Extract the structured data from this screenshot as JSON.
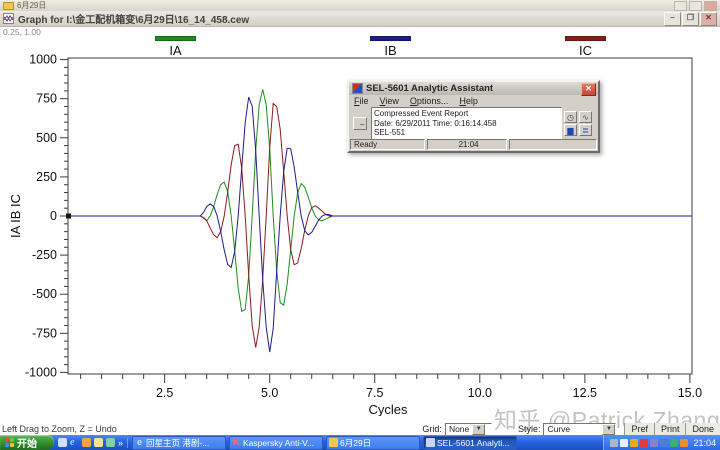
{
  "background_window": {
    "title": "6月29日"
  },
  "graph_window": {
    "title": "Graph for I:\\金工配机箱变\\6月29日\\16_14_458.cew",
    "corner_readout": "0.25, 1.00",
    "legend": [
      {
        "label": "IA",
        "color": "#1E8C1E"
      },
      {
        "label": "IB",
        "color": "#1C1C8C"
      },
      {
        "label": "IC",
        "color": "#8C1C1C"
      }
    ],
    "status_hint": "Left Drag to Zoom, Z = Undo",
    "bottom_toolbar": {
      "grid_label": "Grid:",
      "grid_value": "None",
      "style_label": "Style:",
      "style_value": "Curve",
      "buttons": [
        "Pref",
        "Print",
        "Done"
      ]
    }
  },
  "chart_data": {
    "type": "line",
    "title": "",
    "xlabel": "Cycles",
    "ylabel": "IA IB IC",
    "xlim": [
      0.2,
      15.05
    ],
    "ylim": [
      -1010,
      1010
    ],
    "grid": "off",
    "legend_position": "top",
    "x_ticks_major": [
      2.5,
      5.0,
      7.5,
      10.0,
      12.5,
      15.0
    ],
    "x_tick_labels": [
      "2.5",
      "5.0",
      "7.5",
      "10.0",
      "12.5",
      "15.0"
    ],
    "x_minor_step": 0.5,
    "y_ticks_major": [
      1000,
      750,
      500,
      250,
      0,
      -250,
      -500,
      -750,
      -1000
    ],
    "y_minor_step": 50,
    "series": [
      {
        "name": "IA",
        "color": "#1E8C1E",
        "points": [
          [
            0.2,
            0
          ],
          [
            3.35,
            0
          ],
          [
            3.43,
            -15
          ],
          [
            3.5,
            -30
          ],
          [
            3.583,
            0
          ],
          [
            3.667,
            60
          ],
          [
            3.75,
            139
          ],
          [
            3.833,
            200
          ],
          [
            3.917,
            217
          ],
          [
            4.0,
            155
          ],
          [
            4.083,
            0
          ],
          [
            4.167,
            -225
          ],
          [
            4.25,
            -459
          ],
          [
            4.333,
            -610
          ],
          [
            4.417,
            -598
          ],
          [
            4.5,
            -380
          ],
          [
            4.583,
            0
          ],
          [
            4.667,
            420
          ],
          [
            4.75,
            710
          ],
          [
            4.833,
            810
          ],
          [
            4.917,
            710
          ],
          [
            5.0,
            435
          ],
          [
            5.083,
            0
          ],
          [
            5.167,
            -350
          ],
          [
            5.25,
            -554
          ],
          [
            5.333,
            -570
          ],
          [
            5.417,
            -433
          ],
          [
            5.5,
            -215
          ],
          [
            5.583,
            0
          ],
          [
            5.667,
            150
          ],
          [
            5.75,
            208
          ],
          [
            5.833,
            185
          ],
          [
            5.917,
            121
          ],
          [
            6.0,
            53
          ],
          [
            6.083,
            0
          ],
          [
            6.167,
            -25
          ],
          [
            6.25,
            -30
          ],
          [
            6.333,
            -20
          ],
          [
            6.417,
            -9
          ],
          [
            6.5,
            0
          ],
          [
            15.05,
            0
          ]
        ]
      },
      {
        "name": "IC",
        "color": "#8C1C1C",
        "points": [
          [
            0.2,
            0
          ],
          [
            3.35,
            0
          ],
          [
            3.43,
            -10
          ],
          [
            3.5,
            -30
          ],
          [
            3.583,
            -78
          ],
          [
            3.667,
            -120
          ],
          [
            3.75,
            -139
          ],
          [
            3.833,
            -100
          ],
          [
            3.917,
            0
          ],
          [
            4.0,
            155
          ],
          [
            4.083,
            329
          ],
          [
            4.167,
            450
          ],
          [
            4.25,
            459
          ],
          [
            4.333,
            305
          ],
          [
            4.417,
            0
          ],
          [
            4.5,
            -380
          ],
          [
            4.583,
            -701
          ],
          [
            4.667,
            -840
          ],
          [
            4.75,
            -710
          ],
          [
            4.833,
            -405
          ],
          [
            4.917,
            0
          ],
          [
            5.0,
            435
          ],
          [
            5.083,
            719
          ],
          [
            5.167,
            700
          ],
          [
            5.25,
            554
          ],
          [
            5.333,
            285
          ],
          [
            5.417,
            0
          ],
          [
            5.5,
            -215
          ],
          [
            5.583,
            -312
          ],
          [
            5.667,
            -300
          ],
          [
            5.75,
            -208
          ],
          [
            5.833,
            -93
          ],
          [
            5.917,
            0
          ],
          [
            6.0,
            53
          ],
          [
            6.083,
            65
          ],
          [
            6.167,
            50
          ],
          [
            6.25,
            30
          ],
          [
            6.333,
            10
          ],
          [
            6.417,
            0
          ],
          [
            6.5,
            0
          ],
          [
            15.05,
            0
          ]
        ]
      },
      {
        "name": "IB",
        "color": "#1C1C8C",
        "points": [
          [
            0.2,
            0
          ],
          [
            3.35,
            0
          ],
          [
            3.43,
            25
          ],
          [
            3.5,
            60
          ],
          [
            3.583,
            78
          ],
          [
            3.667,
            60
          ],
          [
            3.75,
            0
          ],
          [
            3.833,
            -100
          ],
          [
            3.917,
            -217
          ],
          [
            4.0,
            -310
          ],
          [
            4.083,
            -329
          ],
          [
            4.167,
            -225
          ],
          [
            4.25,
            0
          ],
          [
            4.333,
            305
          ],
          [
            4.417,
            598
          ],
          [
            4.5,
            760
          ],
          [
            4.583,
            701
          ],
          [
            4.667,
            420
          ],
          [
            4.75,
            0
          ],
          [
            4.833,
            -405
          ],
          [
            4.917,
            -710
          ],
          [
            5.0,
            -870
          ],
          [
            5.083,
            -719
          ],
          [
            5.167,
            -350
          ],
          [
            5.25,
            0
          ],
          [
            5.333,
            285
          ],
          [
            5.417,
            433
          ],
          [
            5.5,
            430
          ],
          [
            5.583,
            312
          ],
          [
            5.667,
            150
          ],
          [
            5.75,
            0
          ],
          [
            5.833,
            -93
          ],
          [
            5.917,
            -121
          ],
          [
            6.0,
            -105
          ],
          [
            6.083,
            -65
          ],
          [
            6.167,
            -25
          ],
          [
            6.25,
            0
          ],
          [
            6.333,
            10
          ],
          [
            6.417,
            9
          ],
          [
            6.5,
            0
          ],
          [
            15.05,
            0
          ]
        ]
      }
    ]
  },
  "dialog": {
    "title": "SEL-5601 Analytic Assistant",
    "menu": [
      "File",
      "View",
      "Options...",
      "Help"
    ],
    "collapse_button": "–",
    "report_lines": [
      "Compressed Event Report",
      "Date: 6/29/2011  Time: 0:16:14.458",
      "SEL-551"
    ],
    "tool_icons": [
      "phasor-icon",
      "harmonics-icon",
      "bar-chart-icon",
      "event-report-icon"
    ],
    "status_left": "Ready",
    "status_time": "21:04"
  },
  "watermark": "知乎 @Patrick Zhang",
  "taskbar": {
    "start_label": "开始",
    "quick_launch": [
      {
        "icon": "show-desktop-icon",
        "color": "#cfe0f8"
      },
      {
        "icon": "ie-icon",
        "color": "#8fd2ff"
      },
      {
        "icon": "media-player-icon",
        "color": "#f2a33c"
      },
      {
        "icon": "qq-icon",
        "color": "#f6e58d"
      },
      {
        "icon": "messenger-icon",
        "color": "#7fd1a8"
      }
    ],
    "tasks": [
      {
        "label": "回星主页 港剧-...",
        "icon": "ie-icon",
        "active": false
      },
      {
        "label": "Kaspersky Anti-V...",
        "icon": "kaspersky-icon",
        "active": false
      },
      {
        "label": "6月29日",
        "icon": "folder-icon",
        "active": false
      },
      {
        "label": "SEL-5601 Analyti...",
        "icon": "sel-icon",
        "active": true
      }
    ],
    "tray_icons": [
      {
        "icon": "printer-icon",
        "color": "#aeb6c2"
      },
      {
        "icon": "volume-icon",
        "color": "#e8eef7"
      },
      {
        "icon": "shield-icon",
        "color": "#f5a623"
      },
      {
        "icon": "kaspersky-icon",
        "color": "#e03c31"
      },
      {
        "icon": "update-icon",
        "color": "#8f7fc9"
      },
      {
        "icon": "input-method-icon",
        "color": "#4d7fd0"
      },
      {
        "icon": "network-icon",
        "color": "#35b56a"
      },
      {
        "icon": "browser-icon",
        "color": "#f08c2e"
      }
    ],
    "tray_time": "21:04"
  }
}
